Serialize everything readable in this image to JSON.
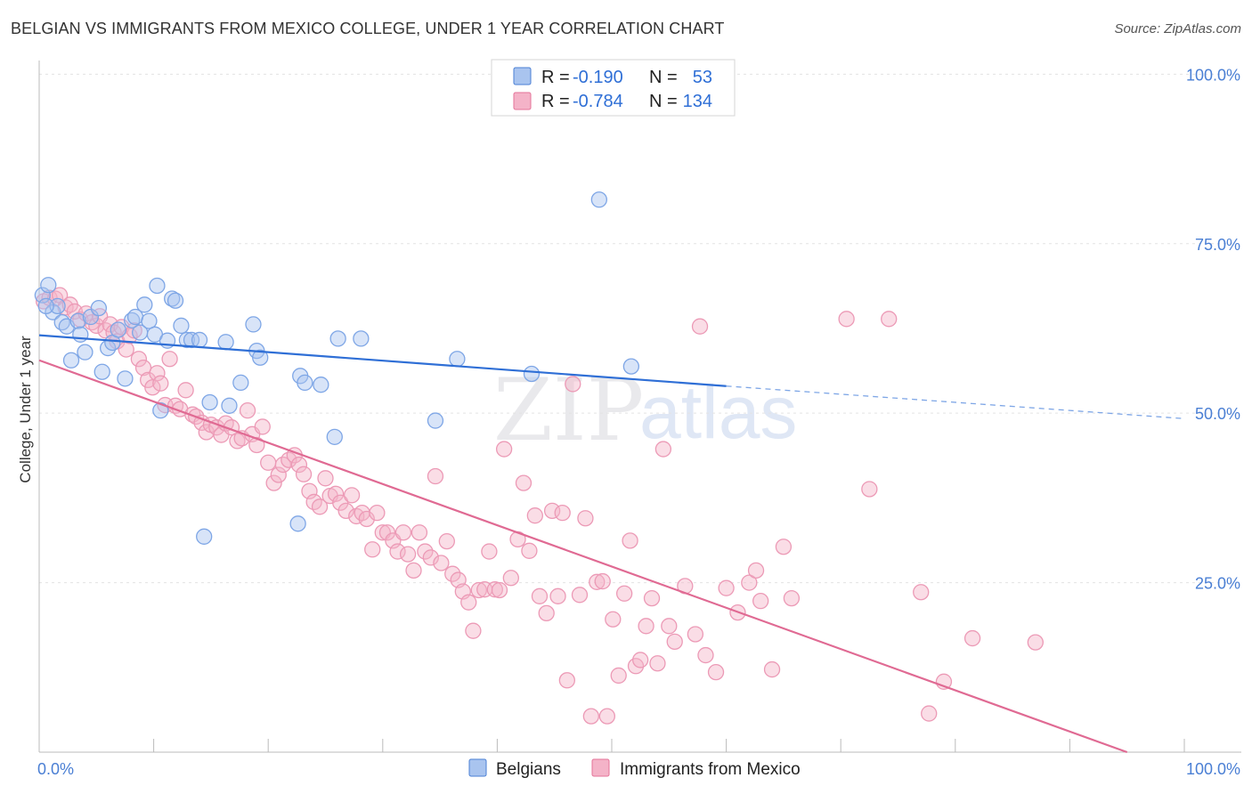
{
  "title": "BELGIAN VS IMMIGRANTS FROM MEXICO COLLEGE, UNDER 1 YEAR CORRELATION CHART",
  "source": "Source: ZipAtlas.com",
  "watermark": {
    "zip": "ZIP",
    "atlas": "atlas"
  },
  "legend": {
    "r_label": "R =",
    "n_label": "N =",
    "rows": [
      {
        "name": "Belgians",
        "r": "-0.190",
        "n": "53"
      },
      {
        "name": "Immigrants from Mexico",
        "r": "-0.784",
        "n": "134"
      }
    ]
  },
  "colors": {
    "belgians": "#4a7fd4",
    "mexico": "#e57399",
    "belgians_fill": "#a9c4ef",
    "mexico_fill": "#f4b3c8"
  },
  "chart_data": {
    "type": "scatter",
    "xlabel": "",
    "ylabel": "College, Under 1 year",
    "xlim": [
      0,
      100
    ],
    "ylim": [
      0,
      100
    ],
    "x_tick_labels": [
      "0.0%",
      "100.0%"
    ],
    "y_tick_labels": [
      "100.0%",
      "75.0%",
      "50.0%",
      "25.0%"
    ],
    "y_tick_values": [
      100,
      75,
      50,
      25
    ],
    "grid": true,
    "series": [
      {
        "name": "Belgians",
        "r": -0.19,
        "n": 53,
        "trend": {
          "x0": 0,
          "y0": 61.5,
          "x1": 60,
          "y1": 54.0,
          "dash_to_x": 100,
          "dash_to_y": 49.2
        },
        "points": [
          [
            0.3,
            67.4
          ],
          [
            0.8,
            68.9
          ],
          [
            1.2,
            64.9
          ],
          [
            1.6,
            65.8
          ],
          [
            2.0,
            63.4
          ],
          [
            2.4,
            62.8
          ],
          [
            2.8,
            57.8
          ],
          [
            3.4,
            63.6
          ],
          [
            3.6,
            61.6
          ],
          [
            4.0,
            59.0
          ],
          [
            4.5,
            64.2
          ],
          [
            5.2,
            65.5
          ],
          [
            5.5,
            56.1
          ],
          [
            6.0,
            59.6
          ],
          [
            6.4,
            60.4
          ],
          [
            6.9,
            62.3
          ],
          [
            7.5,
            55.1
          ],
          [
            8.1,
            63.7
          ],
          [
            8.4,
            64.2
          ],
          [
            8.8,
            61.9
          ],
          [
            9.2,
            66.0
          ],
          [
            9.6,
            63.6
          ],
          [
            10.1,
            61.6
          ],
          [
            10.3,
            68.8
          ],
          [
            10.6,
            50.4
          ],
          [
            11.2,
            60.7
          ],
          [
            11.6,
            66.9
          ],
          [
            11.9,
            66.6
          ],
          [
            12.4,
            62.9
          ],
          [
            12.9,
            60.8
          ],
          [
            13.3,
            60.8
          ],
          [
            14.0,
            60.8
          ],
          [
            14.4,
            31.8
          ],
          [
            14.9,
            51.6
          ],
          [
            16.3,
            60.5
          ],
          [
            16.6,
            51.1
          ],
          [
            17.6,
            54.5
          ],
          [
            18.7,
            63.1
          ],
          [
            19.0,
            59.2
          ],
          [
            19.3,
            58.2
          ],
          [
            22.6,
            33.7
          ],
          [
            22.8,
            55.5
          ],
          [
            23.2,
            54.5
          ],
          [
            24.6,
            54.2
          ],
          [
            25.8,
            46.5
          ],
          [
            26.1,
            61.0
          ],
          [
            28.1,
            61.0
          ],
          [
            34.6,
            48.9
          ],
          [
            36.5,
            58.0
          ],
          [
            43.0,
            55.8
          ],
          [
            48.9,
            81.5
          ],
          [
            51.7,
            56.9
          ],
          [
            0.6,
            65.8
          ]
        ]
      },
      {
        "name": "Immigrants from Mexico",
        "r": -0.784,
        "n": 134,
        "trend": {
          "x0": 0,
          "y0": 57.8,
          "x1": 95,
          "y1": 0.0
        },
        "points": [
          [
            0.4,
            66.5
          ],
          [
            0.9,
            67.0
          ],
          [
            1.4,
            66.9
          ],
          [
            1.8,
            67.4
          ],
          [
            2.3,
            65.6
          ],
          [
            2.7,
            66.0
          ],
          [
            3.1,
            65.0
          ],
          [
            3.6,
            63.8
          ],
          [
            4.1,
            64.7
          ],
          [
            4.6,
            63.4
          ],
          [
            5.0,
            62.9
          ],
          [
            5.3,
            64.3
          ],
          [
            5.8,
            62.2
          ],
          [
            6.2,
            63.1
          ],
          [
            6.5,
            61.9
          ],
          [
            6.8,
            60.6
          ],
          [
            7.2,
            62.7
          ],
          [
            7.6,
            59.4
          ],
          [
            7.9,
            61.4
          ],
          [
            8.3,
            62.2
          ],
          [
            8.7,
            58.0
          ],
          [
            9.1,
            56.7
          ],
          [
            9.5,
            54.9
          ],
          [
            9.9,
            53.8
          ],
          [
            10.3,
            55.9
          ],
          [
            10.6,
            54.4
          ],
          [
            11.0,
            51.2
          ],
          [
            11.4,
            58.0
          ],
          [
            11.9,
            51.1
          ],
          [
            12.3,
            50.6
          ],
          [
            12.8,
            53.4
          ],
          [
            13.4,
            49.8
          ],
          [
            13.7,
            49.5
          ],
          [
            14.2,
            48.6
          ],
          [
            14.6,
            47.2
          ],
          [
            15.0,
            48.3
          ],
          [
            15.5,
            47.9
          ],
          [
            15.9,
            46.8
          ],
          [
            16.3,
            48.5
          ],
          [
            16.8,
            47.9
          ],
          [
            17.3,
            45.9
          ],
          [
            17.7,
            46.3
          ],
          [
            18.2,
            50.4
          ],
          [
            18.6,
            46.9
          ],
          [
            19.0,
            45.3
          ],
          [
            19.5,
            48.0
          ],
          [
            20.0,
            42.7
          ],
          [
            20.5,
            39.7
          ],
          [
            20.9,
            40.9
          ],
          [
            21.3,
            42.4
          ],
          [
            21.8,
            43.1
          ],
          [
            22.3,
            43.8
          ],
          [
            22.7,
            42.4
          ],
          [
            23.1,
            41.0
          ],
          [
            23.6,
            38.5
          ],
          [
            24.0,
            36.9
          ],
          [
            24.5,
            36.2
          ],
          [
            25.0,
            40.4
          ],
          [
            25.4,
            37.8
          ],
          [
            25.9,
            38.1
          ],
          [
            26.3,
            36.8
          ],
          [
            26.8,
            35.6
          ],
          [
            27.3,
            37.9
          ],
          [
            27.7,
            34.8
          ],
          [
            28.2,
            35.3
          ],
          [
            28.6,
            34.4
          ],
          [
            29.1,
            29.9
          ],
          [
            29.5,
            35.3
          ],
          [
            30.0,
            32.4
          ],
          [
            30.4,
            32.4
          ],
          [
            30.9,
            31.2
          ],
          [
            31.3,
            29.6
          ],
          [
            31.8,
            32.4
          ],
          [
            32.2,
            29.2
          ],
          [
            32.7,
            26.8
          ],
          [
            33.2,
            32.4
          ],
          [
            33.7,
            29.6
          ],
          [
            34.2,
            28.7
          ],
          [
            34.6,
            40.7
          ],
          [
            35.1,
            27.9
          ],
          [
            35.6,
            31.1
          ],
          [
            36.1,
            26.3
          ],
          [
            36.6,
            25.4
          ],
          [
            37.0,
            23.7
          ],
          [
            37.5,
            22.1
          ],
          [
            37.9,
            17.9
          ],
          [
            38.4,
            23.9
          ],
          [
            38.9,
            24.0
          ],
          [
            39.3,
            29.6
          ],
          [
            39.8,
            24.0
          ],
          [
            40.2,
            23.9
          ],
          [
            40.6,
            44.7
          ],
          [
            41.2,
            25.7
          ],
          [
            41.8,
            31.4
          ],
          [
            42.3,
            39.7
          ],
          [
            42.8,
            29.7
          ],
          [
            43.3,
            34.9
          ],
          [
            43.7,
            23.0
          ],
          [
            44.3,
            20.5
          ],
          [
            44.8,
            35.6
          ],
          [
            45.3,
            23.0
          ],
          [
            45.7,
            35.3
          ],
          [
            46.1,
            10.6
          ],
          [
            46.6,
            54.3
          ],
          [
            47.2,
            23.2
          ],
          [
            47.7,
            34.5
          ],
          [
            48.2,
            5.3
          ],
          [
            48.7,
            25.1
          ],
          [
            49.2,
            25.2
          ],
          [
            49.6,
            5.3
          ],
          [
            50.1,
            19.6
          ],
          [
            50.6,
            11.3
          ],
          [
            51.1,
            23.4
          ],
          [
            51.6,
            31.2
          ],
          [
            52.1,
            12.7
          ],
          [
            52.5,
            13.6
          ],
          [
            53.0,
            18.6
          ],
          [
            53.5,
            22.7
          ],
          [
            54.0,
            13.1
          ],
          [
            54.5,
            44.7
          ],
          [
            55.0,
            18.6
          ],
          [
            55.5,
            16.3
          ],
          [
            56.4,
            24.5
          ],
          [
            57.3,
            17.4
          ],
          [
            58.2,
            14.3
          ],
          [
            59.1,
            11.8
          ],
          [
            60.0,
            24.2
          ],
          [
            61.0,
            20.6
          ],
          [
            62.0,
            25.0
          ],
          [
            63.0,
            22.3
          ],
          [
            64.0,
            12.2
          ],
          [
            65.0,
            30.3
          ],
          [
            65.7,
            22.7
          ],
          [
            70.5,
            63.9
          ],
          [
            74.2,
            63.9
          ],
          [
            72.5,
            38.8
          ],
          [
            77.0,
            23.6
          ],
          [
            79.0,
            10.4
          ],
          [
            81.5,
            16.8
          ],
          [
            87.0,
            16.2
          ]
        ]
      }
    ]
  },
  "mexico_trend_extra": [
    [
      77.7,
      5.7
    ],
    [
      62.6,
      26.8
    ],
    [
      57.7,
      62.8
    ]
  ]
}
